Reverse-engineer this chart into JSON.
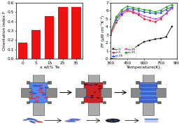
{
  "bar_categories": [
    "0",
    "5",
    "15",
    "25",
    "35"
  ],
  "bar_values": [
    0.175,
    0.305,
    0.455,
    0.555,
    0.555
  ],
  "bar_color": "#EE1111",
  "bar_xlabel": "x wt% Te",
  "bar_ylabel": "Orientation index F",
  "bar_ylim": [
    0.0,
    0.6
  ],
  "bar_yticks": [
    0.0,
    0.1,
    0.2,
    0.3,
    0.4,
    0.5,
    0.6
  ],
  "line_temperature": [
    300,
    350,
    400,
    450,
    500,
    550,
    600,
    650,
    700,
    750,
    800,
    850
  ],
  "line_x0": [
    0.05,
    0.15,
    0.35,
    0.75,
    1.2,
    1.7,
    2.1,
    2.3,
    2.45,
    2.55,
    2.75,
    4.0
  ],
  "line_x5": [
    3.0,
    4.5,
    5.5,
    6.0,
    5.8,
    5.5,
    5.0,
    4.8,
    4.6,
    5.0,
    5.7,
    6.4
  ],
  "line_x15": [
    3.2,
    4.9,
    5.7,
    6.25,
    6.2,
    6.05,
    5.85,
    5.75,
    5.65,
    5.75,
    6.15,
    6.45
  ],
  "line_x25": [
    3.1,
    5.1,
    5.85,
    6.1,
    5.9,
    5.65,
    5.35,
    5.15,
    4.95,
    5.15,
    5.65,
    6.25
  ],
  "line_x35": [
    3.3,
    5.2,
    6.1,
    6.55,
    6.4,
    6.25,
    6.15,
    6.05,
    5.85,
    6.05,
    6.45,
    6.75
  ],
  "line_xlabel": "Temperature(K)",
  "line_ylabel": "PF (μW cm⁻¹K⁻²)",
  "line_xlim": [
    300,
    900
  ],
  "line_ylim": [
    0,
    7
  ],
  "line_yticks": [
    0,
    1,
    2,
    3,
    4,
    5,
    6,
    7
  ],
  "line_xticks": [
    300,
    450,
    600,
    750,
    900
  ],
  "colors": {
    "x0": "#222222",
    "x5": "#EE2222",
    "x15": "#2244EE",
    "x25": "#CC44CC",
    "x35": "#22AA22"
  },
  "markers": {
    "x0": "s",
    "x5": "o",
    "x15": "^",
    "x25": "v",
    "x35": "D"
  },
  "legend_labels": [
    "x=0",
    "x=5",
    "x=15",
    "x=25",
    "x=35"
  ],
  "bg_color": "#FFFFFF"
}
